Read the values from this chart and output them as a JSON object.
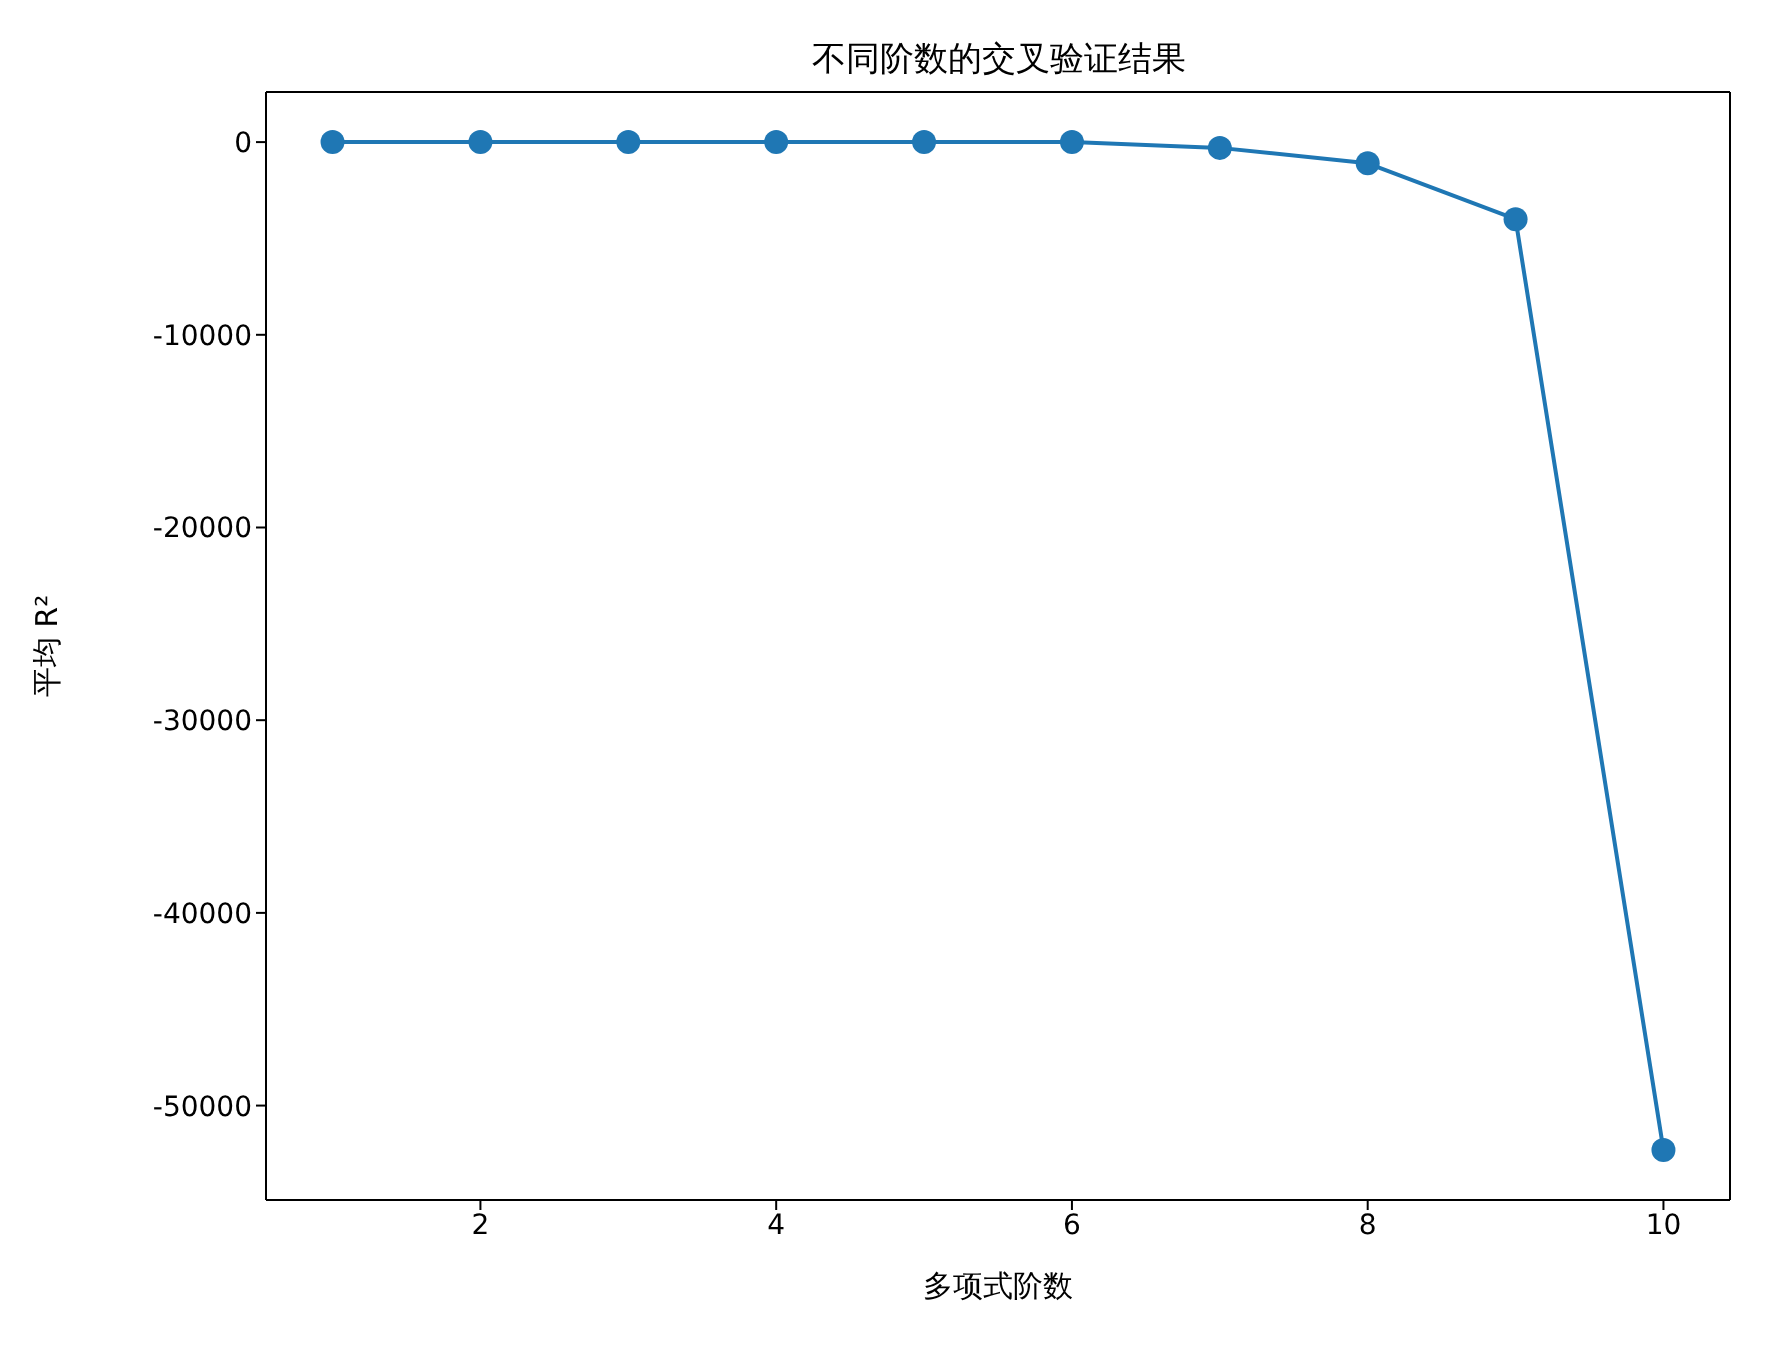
{
  "chart_data": {
    "type": "line",
    "title": "不同阶数的交叉验证结果",
    "xlabel": "多项式阶数",
    "ylabel": "平均 R²",
    "x": [
      1,
      2,
      3,
      4,
      5,
      6,
      7,
      8,
      9,
      10
    ],
    "series": [
      {
        "color": "#1f77b4",
        "values": [
          0,
          0,
          0,
          0,
          0,
          0,
          -300,
          -1100,
          -4000,
          -52300
        ]
      }
    ],
    "xlim": [
      0.55,
      10.45
    ],
    "xticks": [
      2,
      4,
      6,
      8,
      10
    ],
    "ylim": [
      -54900,
      2600
    ],
    "yticks": [
      0,
      -10000,
      -20000,
      -30000,
      -40000,
      -50000
    ],
    "marker": "circle",
    "line_style": "solid",
    "grid": false,
    "legend": false
  }
}
